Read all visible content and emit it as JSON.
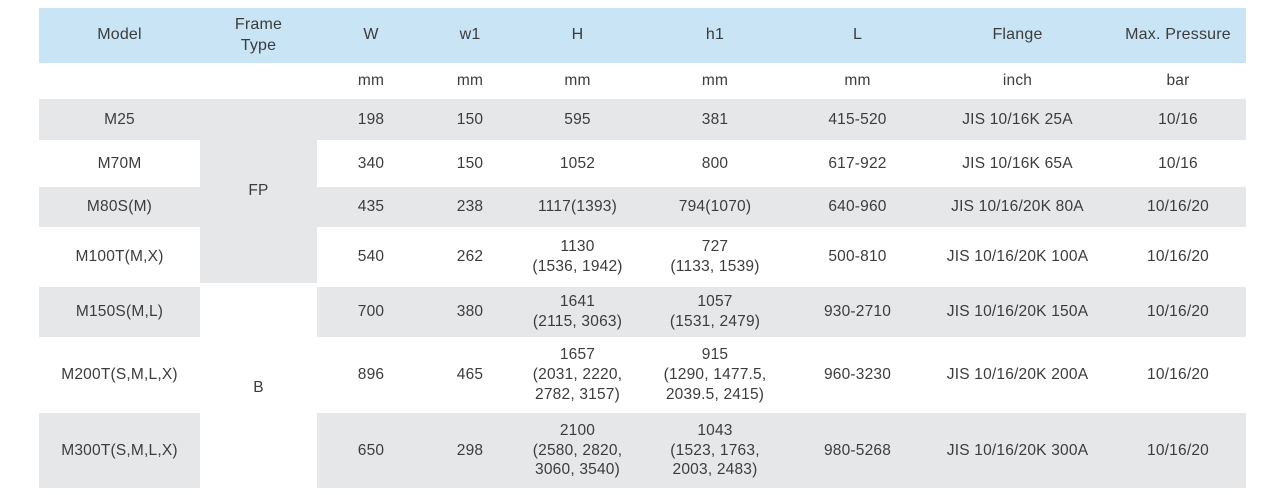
{
  "table": {
    "headers": [
      "Model",
      "Frame\nType",
      "W",
      "w1",
      "H",
      "h1",
      "L",
      "Flange",
      "Max. Pressure"
    ],
    "units": [
      "",
      "",
      "mm",
      "mm",
      "mm",
      "mm",
      "mm",
      "inch",
      "bar"
    ],
    "frame_groups": [
      {
        "label": "FP",
        "rows": 4
      },
      {
        "label": "B",
        "rows": 3
      }
    ],
    "rows": [
      {
        "model": "M25",
        "w": "198",
        "w1": "150",
        "h": "595",
        "h1": "381",
        "l": "415-520",
        "flange": "JIS 10/16K 25A",
        "pressure": "10/16"
      },
      {
        "model": "M70M",
        "w": "340",
        "w1": "150",
        "h": "1052",
        "h1": "800",
        "l": "617-922",
        "flange": "JIS 10/16K 65A",
        "pressure": "10/16"
      },
      {
        "model": "M80S(M)",
        "w": "435",
        "w1": "238",
        "h": "1117(1393)",
        "h1": "794(1070)",
        "l": "640-960",
        "flange": "JIS 10/16/20K 80A",
        "pressure": "10/16/20"
      },
      {
        "model": "M100T(M,X)",
        "w": "540",
        "w1": "262",
        "h": "1130\n(1536, 1942)",
        "h1": "727\n(1133, 1539)",
        "l": "500-810",
        "flange": "JIS 10/16/20K 100A",
        "pressure": "10/16/20"
      },
      {
        "model": "M150S(M,L)",
        "w": "700",
        "w1": "380",
        "h": "1641\n(2115, 3063)",
        "h1": "1057\n(1531, 2479)",
        "l": "930-2710",
        "flange": "JIS 10/16/20K 150A",
        "pressure": "10/16/20"
      },
      {
        "model": "M200T(S,M,L,X)",
        "w": "896",
        "w1": "465",
        "h": "1657\n(2031, 2220,\n2782, 3157)",
        "h1": "915\n(1290, 1477.5,\n2039.5, 2415)",
        "l": "960-3230",
        "flange": "JIS 10/16/20K 200A",
        "pressure": "10/16/20"
      },
      {
        "model": "M300T(S,M,L,X)",
        "w": "650",
        "w1": "298",
        "h": "2100\n(2580, 2820,\n3060, 3540)",
        "h1": "1043\n(1523, 1763,\n2003, 2483)",
        "l": "980-5268",
        "flange": "JIS 10/16/20K 300A",
        "pressure": "10/16/20"
      }
    ],
    "colors": {
      "header_bg": "#c8e4f5",
      "row_alt_bg": "#e6e7e8",
      "text": "#3c3c3c"
    }
  }
}
